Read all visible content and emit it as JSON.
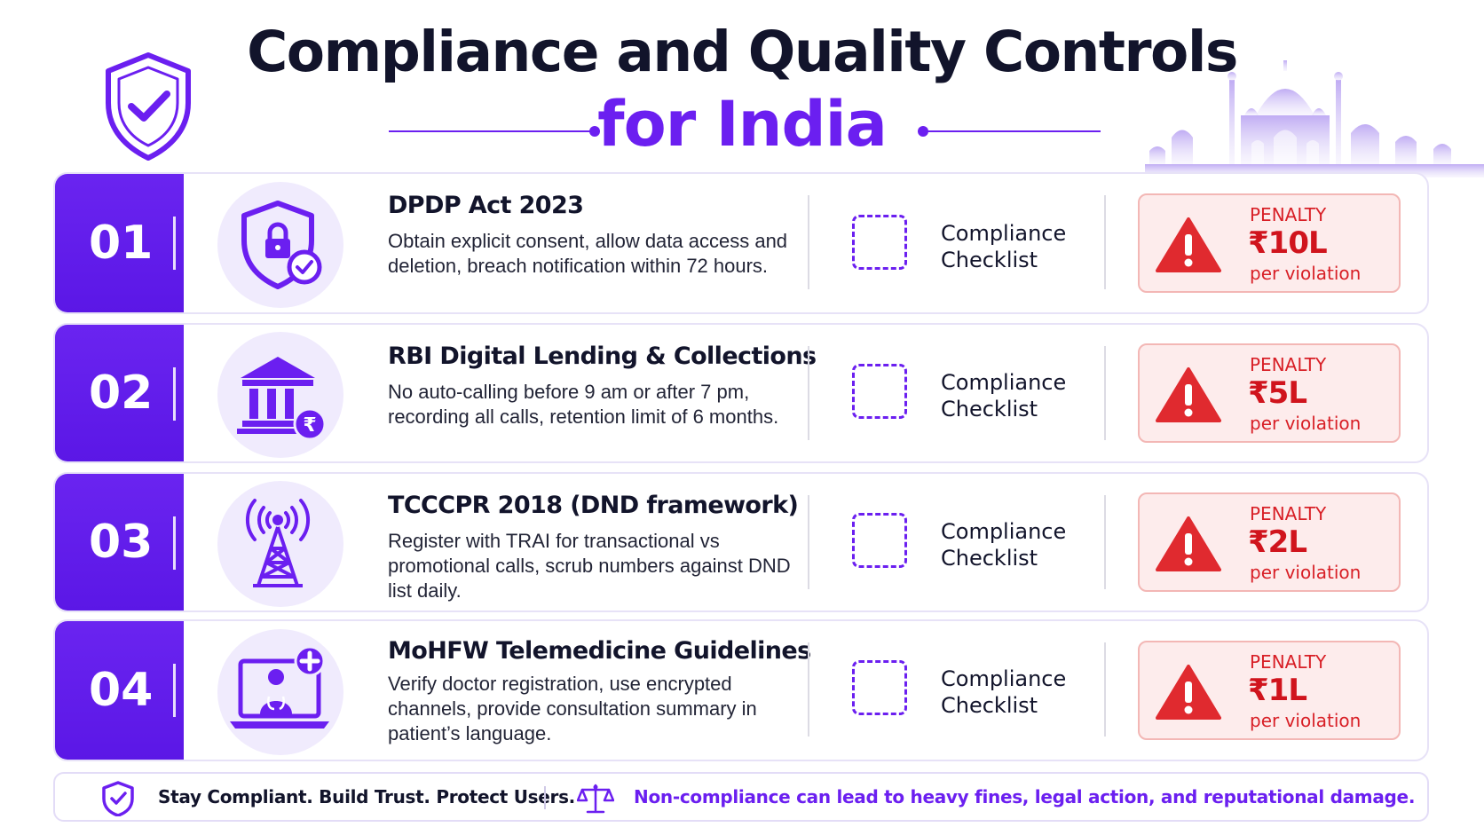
{
  "title": {
    "line1": "Compliance and Quality Controls",
    "line2": "for India"
  },
  "colors": {
    "accent": "#6b1ff0",
    "penalty_red": "#d81f26",
    "penalty_bg": "#fdecec"
  },
  "rows": [
    {
      "number": "01",
      "icon": "shield-lock-icon",
      "title": "DPDP Act 2023",
      "description": "Obtain explicit consent, allow data access and deletion, breach notification within 72 hours.",
      "checklist_line1": "Compliance",
      "checklist_line2": "Checklist",
      "penalty_label": "PENALTY",
      "penalty_amount": "₹10L",
      "penalty_unit": "per violation"
    },
    {
      "number": "02",
      "icon": "bank-rupee-icon",
      "title": "RBI Digital Lending & Collections",
      "description": "No auto-calling before 9 am or after 7 pm, recording all calls, retention limit of 6 months.",
      "checklist_line1": "Compliance",
      "checklist_line2": "Checklist",
      "penalty_label": "PENALTY",
      "penalty_amount": "₹5L",
      "penalty_unit": "per violation"
    },
    {
      "number": "03",
      "icon": "signal-tower-icon",
      "title": "TCCCPR 2018 (DND framework)",
      "description": "Register with TRAI for transactional vs promotional calls, scrub numbers against DND list daily.",
      "checklist_line1": "Compliance",
      "checklist_line2": "Checklist",
      "penalty_label": "PENALTY",
      "penalty_amount": "₹2L",
      "penalty_unit": "per violation"
    },
    {
      "number": "04",
      "icon": "telemedicine-laptop-icon",
      "title": "MoHFW Telemedicine Guidelines",
      "description": "Verify doctor registration, use encrypted channels, provide consultation summary in patient’s language.",
      "checklist_line1": "Compliance",
      "checklist_line2": "Checklist",
      "penalty_label": "PENALTY",
      "penalty_amount": "₹1L",
      "penalty_unit": "per violation"
    }
  ],
  "footer": {
    "left_text": "Stay Compliant. Build Trust. Protect Users.",
    "right_text": "Non-compliance can lead to heavy fines, legal action, and reputational damage."
  }
}
